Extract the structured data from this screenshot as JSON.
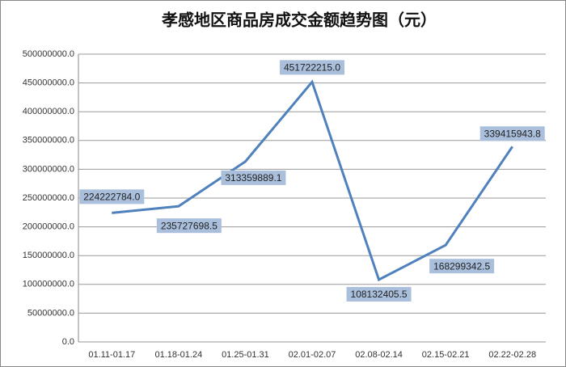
{
  "chart_data": {
    "type": "line",
    "title": "孝感地区商品房成交金额趋势图（元）",
    "categories": [
      "01.11-01.17",
      "01.18-01.24",
      "01.25-01.31",
      "02.01-02.07",
      "02.08-02.14",
      "02.15-02.21",
      "02.22-02.28"
    ],
    "series": [
      {
        "color": "#4f81bd",
        "values": [
          224222784.0,
          235727698.5,
          313359889.1,
          451722215.0,
          108132405.5,
          168299342.5,
          339415943.8
        ],
        "value_labels": [
          "224222784.0",
          "235727698.5",
          "313359889.1",
          "451722215.0",
          "108132405.5",
          "168299342.5",
          "339415943.8"
        ]
      }
    ],
    "ylim": [
      0,
      500000000
    ],
    "yticks": [
      {
        "value": 0,
        "label": "0.0"
      },
      {
        "value": 50000000,
        "label": "50000000.0"
      },
      {
        "value": 100000000,
        "label": "100000000.0"
      },
      {
        "value": 150000000,
        "label": "150000000.0"
      },
      {
        "value": 200000000,
        "label": "200000000.0"
      },
      {
        "value": 250000000,
        "label": "250000000.0"
      },
      {
        "value": 300000000,
        "label": "300000000.0"
      },
      {
        "value": 350000000,
        "label": "350000000.0"
      },
      {
        "value": 400000000,
        "label": "400000000.0"
      },
      {
        "value": 450000000,
        "label": "450000000.0"
      },
      {
        "value": 500000000,
        "label": "500000000.0"
      }
    ],
    "grid": true
  }
}
